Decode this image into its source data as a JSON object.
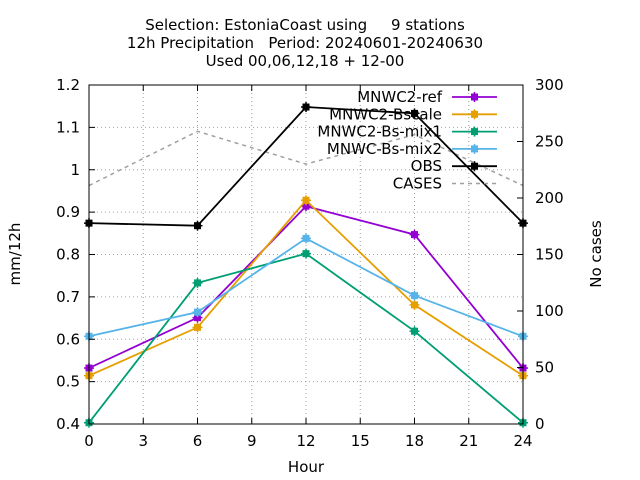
{
  "chart_data": {
    "type": "line",
    "title_lines": [
      "Selection: EstoniaCoast using     9 stations",
      "12h Precipitation   Period: 20240601-20240630",
      "Used 00,06,12,18 + 12-00"
    ],
    "xlabel": "Hour",
    "ylabel": "mm/12h",
    "y2label": "No cases",
    "x": [
      0,
      6,
      12,
      18,
      24
    ],
    "xlim": [
      0,
      24
    ],
    "xticks": [
      0,
      3,
      6,
      9,
      12,
      15,
      18,
      21,
      24
    ],
    "ylim": [
      0.4,
      1.2
    ],
    "yticks": [
      "0.4",
      "0.5",
      "0.6",
      "0.7",
      "0.8",
      "0.9",
      "1",
      "1.1",
      "1.2"
    ],
    "y2lim": [
      0,
      300
    ],
    "y2ticks": [
      0,
      50,
      100,
      150,
      200,
      250,
      300
    ],
    "grid": true,
    "legend_position": "top-right",
    "series": [
      {
        "name": "MNWC2-ref",
        "axis": "y",
        "color": "#9400d3",
        "dash": false,
        "values": [
          0.532,
          0.651,
          0.914,
          0.847,
          0.532
        ]
      },
      {
        "name": "MNWC2-Bscale",
        "axis": "y",
        "color": "#e69f00",
        "dash": false,
        "values": [
          0.514,
          0.628,
          0.928,
          0.681,
          0.514
        ]
      },
      {
        "name": "MNWC2-Bs-mix1",
        "axis": "y",
        "color": "#009e73",
        "dash": false,
        "values": [
          0.403,
          0.733,
          0.802,
          0.619,
          0.403
        ]
      },
      {
        "name": "MNWC-Bs-mix2",
        "axis": "y",
        "color": "#56b4e9",
        "dash": false,
        "values": [
          0.607,
          0.664,
          0.838,
          0.703,
          0.607
        ]
      },
      {
        "name": "OBS",
        "axis": "y",
        "color": "#000000",
        "dash": false,
        "values": [
          0.874,
          0.868,
          1.148,
          1.133,
          0.874
        ]
      },
      {
        "name": "CASES",
        "axis": "y2",
        "color": "#a0a0a0",
        "dash": true,
        "values": [
          211,
          259,
          230,
          256,
          211
        ]
      }
    ]
  }
}
